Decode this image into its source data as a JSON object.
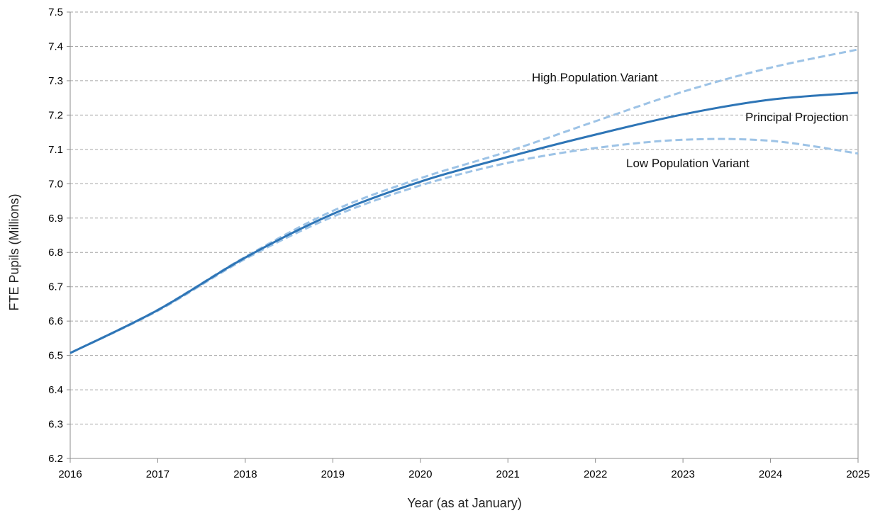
{
  "chart_data": {
    "type": "line",
    "xlabel": "Year (as at January)",
    "ylabel": "FTE Pupils (Millions)",
    "x": [
      2016,
      2017,
      2018,
      2019,
      2020,
      2021,
      2022,
      2023,
      2024,
      2025
    ],
    "xlim": [
      2016,
      2025
    ],
    "ylim": [
      6.2,
      7.5
    ],
    "yticks": [
      "6.2",
      "6.3",
      "6.4",
      "6.5",
      "6.6",
      "6.7",
      "6.8",
      "6.9",
      "7.0",
      "7.1",
      "7.2",
      "7.3",
      "7.4",
      "7.5"
    ],
    "xticks": [
      "2016",
      "2017",
      "2018",
      "2019",
      "2020",
      "2021",
      "2022",
      "2023",
      "2024",
      "2025"
    ],
    "grid": "horizontal dashed",
    "series": [
      {
        "name": "High Population Variant",
        "style": "dashed",
        "color": "#9dc3e6",
        "values": [
          6.507,
          6.633,
          6.787,
          6.921,
          7.016,
          7.094,
          7.182,
          7.268,
          7.338,
          7.391
        ]
      },
      {
        "name": "Principal Projection",
        "style": "solid",
        "color": "#2e75b6",
        "values": [
          6.507,
          6.632,
          6.785,
          6.912,
          7.006,
          7.078,
          7.143,
          7.202,
          7.245,
          7.265
        ]
      },
      {
        "name": "Low Population Variant",
        "style": "dashed",
        "color": "#9dc3e6",
        "values": [
          6.507,
          6.63,
          6.781,
          6.904,
          6.995,
          7.061,
          7.104,
          7.128,
          7.125,
          7.088
        ]
      }
    ]
  }
}
